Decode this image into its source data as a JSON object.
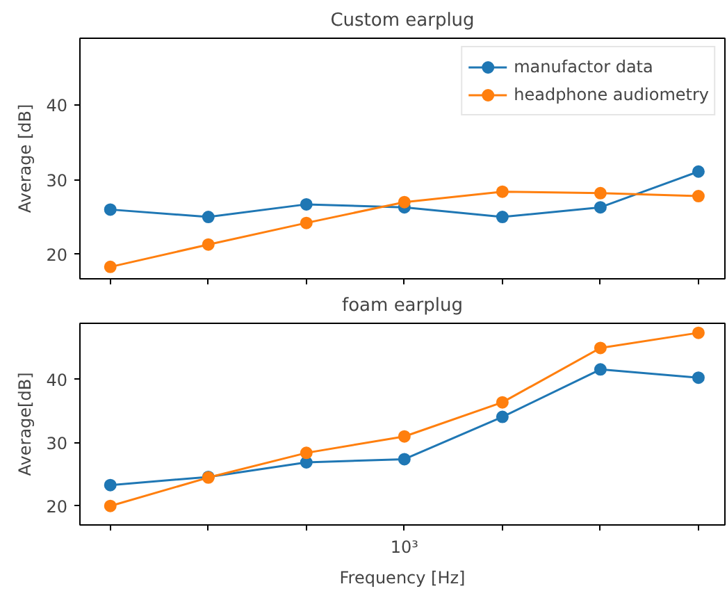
{
  "chart_data": [
    {
      "type": "line",
      "title": "Custom earplug",
      "ylabel": "Average [dB]",
      "categories": [
        null,
        null,
        null,
        null,
        null,
        null,
        null
      ],
      "ylim": [
        16.7,
        49
      ],
      "yticks": [
        20,
        30,
        40
      ],
      "grid": false,
      "legend": "top right",
      "marker": "circle",
      "line_style": "solid",
      "series": [
        {
          "name": "manufactor data",
          "color": "#1f77b4",
          "values": [
            26.0,
            25.0,
            26.7,
            26.3,
            25.0,
            26.3,
            31.1
          ]
        },
        {
          "name": "headphone audiometry",
          "color": "#ff7f0e",
          "values": [
            18.3,
            21.3,
            24.2,
            27.0,
            28.4,
            28.2,
            27.8
          ]
        }
      ]
    },
    {
      "type": "line",
      "title": "foam earplug",
      "xlabel": "Frequency [Hz]",
      "ylabel": "Average[dB]",
      "categories": [
        null,
        null,
        null,
        "10³",
        null,
        null,
        null
      ],
      "ylim": [
        17.0,
        48.9
      ],
      "yticks": [
        20,
        30,
        40
      ],
      "grid": false,
      "marker": "circle",
      "line_style": "solid",
      "series": [
        {
          "color": "#1f77b4",
          "values": [
            23.3,
            24.6,
            26.9,
            27.4,
            34.1,
            41.6,
            40.3
          ]
        },
        {
          "color": "#ff7f0e",
          "values": [
            20.0,
            24.5,
            28.4,
            31.0,
            36.4,
            45.0,
            47.4
          ]
        }
      ]
    }
  ]
}
